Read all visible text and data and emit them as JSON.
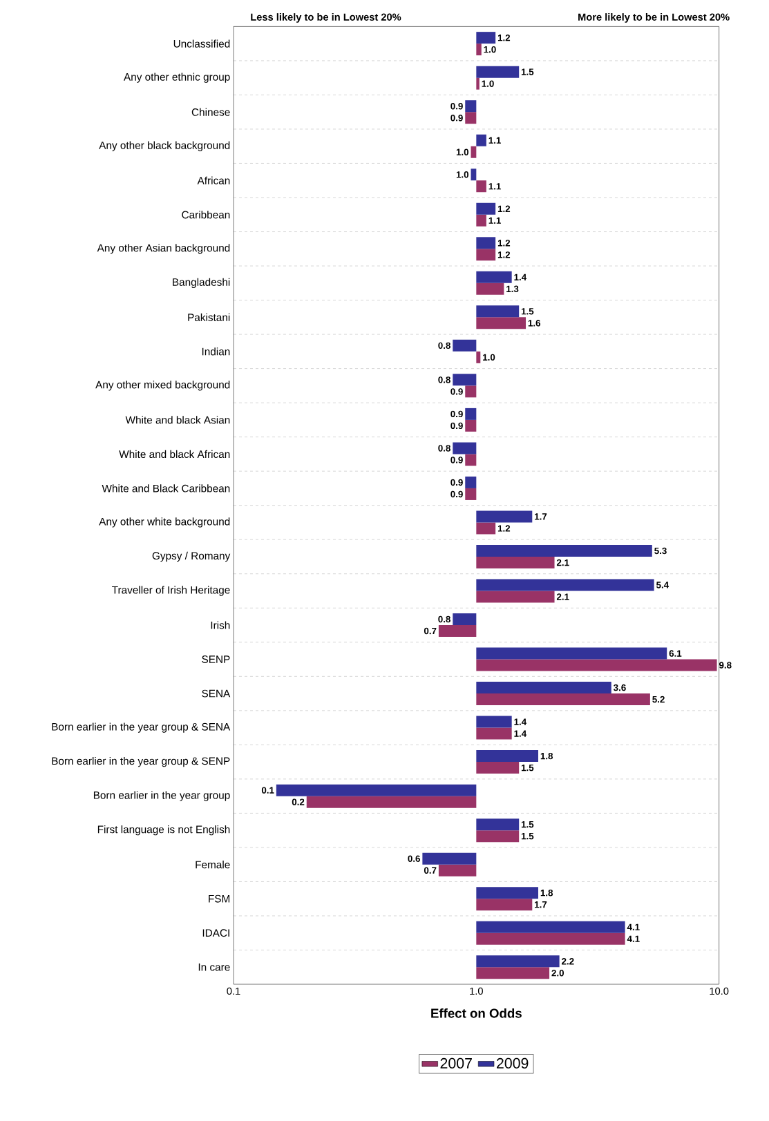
{
  "chart_data": {
    "type": "bar",
    "orientation": "horizontal",
    "log": "x",
    "xlabel": "Effect on Odds",
    "annotations": [
      "Less likely to be in Lowest 20%",
      "More likely to be in Lowest 20%"
    ],
    "categories": [
      "Unclassified",
      "Any other ethnic group",
      "Chinese",
      "Any other black background",
      "African",
      "Caribbean",
      "Any other Asian background",
      "Bangladeshi",
      "Pakistani",
      "Indian",
      "Any other mixed background",
      "White and black Asian",
      "White and black African",
      "White and Black Caribbean",
      "Any other white background",
      "Gypsy / Romany",
      "Traveller of Irish Heritage",
      "Irish",
      "SENP",
      "SENA",
      "Born earlier in the year group & SENA",
      "Born earlier in the year group & SENP",
      "Born earlier in the year group",
      "First language is not English",
      "Female",
      "FSM",
      "IDACI",
      "In care"
    ],
    "series": [
      {
        "name": "2007",
        "color": "#993366",
        "base": [
          1,
          1,
          1,
          1,
          1,
          1,
          1,
          1,
          1,
          1,
          1,
          1,
          1,
          1,
          1,
          1,
          1,
          1,
          1,
          1,
          1,
          1,
          1,
          1,
          1,
          1,
          1,
          1
        ],
        "values": [
          0.05,
          0.03,
          -0.1,
          -0.05,
          0.1,
          0.1,
          0.2,
          0.3,
          0.6,
          0.04,
          -0.1,
          -0.1,
          -0.1,
          -0.1,
          0.2,
          1.1,
          1.1,
          -0.3,
          8.8,
          4.2,
          0.4,
          0.5,
          -0.8,
          0.5,
          -0.3,
          0.7,
          3.1,
          1.0
        ],
        "value_labels": [
          "1.0",
          "1.0",
          "0.9",
          "1.0",
          "1.1",
          "1.1",
          "1.2",
          "1.3",
          "1.6",
          "1.0",
          "0.9",
          "0.9",
          "0.9",
          "0.9",
          "1.2",
          "2.1",
          "2.1",
          "0.7",
          "9.8",
          "5.2",
          "1.4",
          "1.5",
          "0.2",
          "1.5",
          "0.7",
          "1.7",
          "4.1",
          "2.0"
        ]
      },
      {
        "name": "2009",
        "color": "#333399",
        "base": [
          1,
          1,
          1,
          1,
          1,
          1,
          1,
          1,
          1,
          1,
          1,
          1,
          1,
          1,
          1,
          1,
          1,
          1,
          1,
          1,
          1,
          1,
          1,
          1,
          1,
          1,
          1,
          1
        ],
        "values": [
          0.2,
          0.5,
          -0.1,
          0.1,
          -0.05,
          0.2,
          0.2,
          0.4,
          0.5,
          -0.2,
          -0.2,
          -0.1,
          -0.2,
          -0.1,
          0.7,
          4.3,
          4.4,
          -0.2,
          5.1,
          2.6,
          0.4,
          0.8,
          -0.85,
          0.5,
          -0.4,
          0.8,
          3.1,
          1.2
        ],
        "value_labels": [
          "1.2",
          "1.5",
          "0.9",
          "1.1",
          "1.0",
          "1.2",
          "1.2",
          "1.4",
          "1.5",
          "0.8",
          "0.8",
          "0.9",
          "0.8",
          "0.9",
          "1.7",
          "5.3",
          "5.4",
          "0.8",
          "6.1",
          "3.6",
          "1.4",
          "1.8",
          "0.1",
          "1.5",
          "0.6",
          "1.8",
          "4.1",
          "2.2"
        ]
      }
    ],
    "xlim": [
      0.1,
      10
    ],
    "xticks": [
      0.1,
      {
        "value": 1,
        "label": "1.0"
      },
      {
        "value": 10,
        "label": "10.0"
      }
    ],
    "grid": "y",
    "legend": "bottom"
  }
}
